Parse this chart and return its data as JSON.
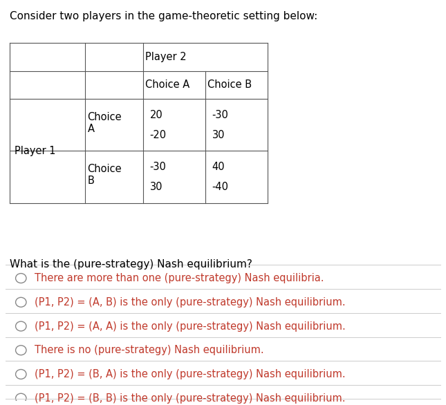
{
  "title": "Consider two players in the game-theoretic setting below:",
  "question": "What is the (pure-strategy) Nash equilibrium?",
  "player1_label": "Player 1",
  "player2_label": "Player 2",
  "choice_a_label": "Choice A",
  "choice_b_label": "Choice B",
  "choice_label_a": "Choice\nA",
  "choice_label_b": "Choice\nB",
  "cell_AA": [
    "20",
    "-20"
  ],
  "cell_AB": [
    "-30",
    "30"
  ],
  "cell_BA": [
    "-30",
    "30"
  ],
  "cell_BB": [
    "40",
    "-40"
  ],
  "options": [
    "There are more than one (pure-strategy) Nash equilibria.",
    "(P1, P2) = (A, B) is the only (pure-strategy) Nash equilibrium.",
    "(P1, P2) = (A, A) is the only (pure-strategy) Nash equilibrium.",
    "There is no (pure-strategy) Nash equilibrium.",
    "(P1, P2) = (B, A) is the only (pure-strategy) Nash equilibrium.",
    "(P1, P2) = (B, B) is the only (pure-strategy) Nash equilibrium."
  ],
  "bg_color": "#ffffff",
  "text_color": "#000000",
  "table_line_color": "#555555",
  "option_text_color": "#c0392b",
  "separator_color": "#cccccc",
  "circle_color": "#888888",
  "title_fontsize": 11,
  "body_fontsize": 10.5,
  "option_fontsize": 10.5
}
